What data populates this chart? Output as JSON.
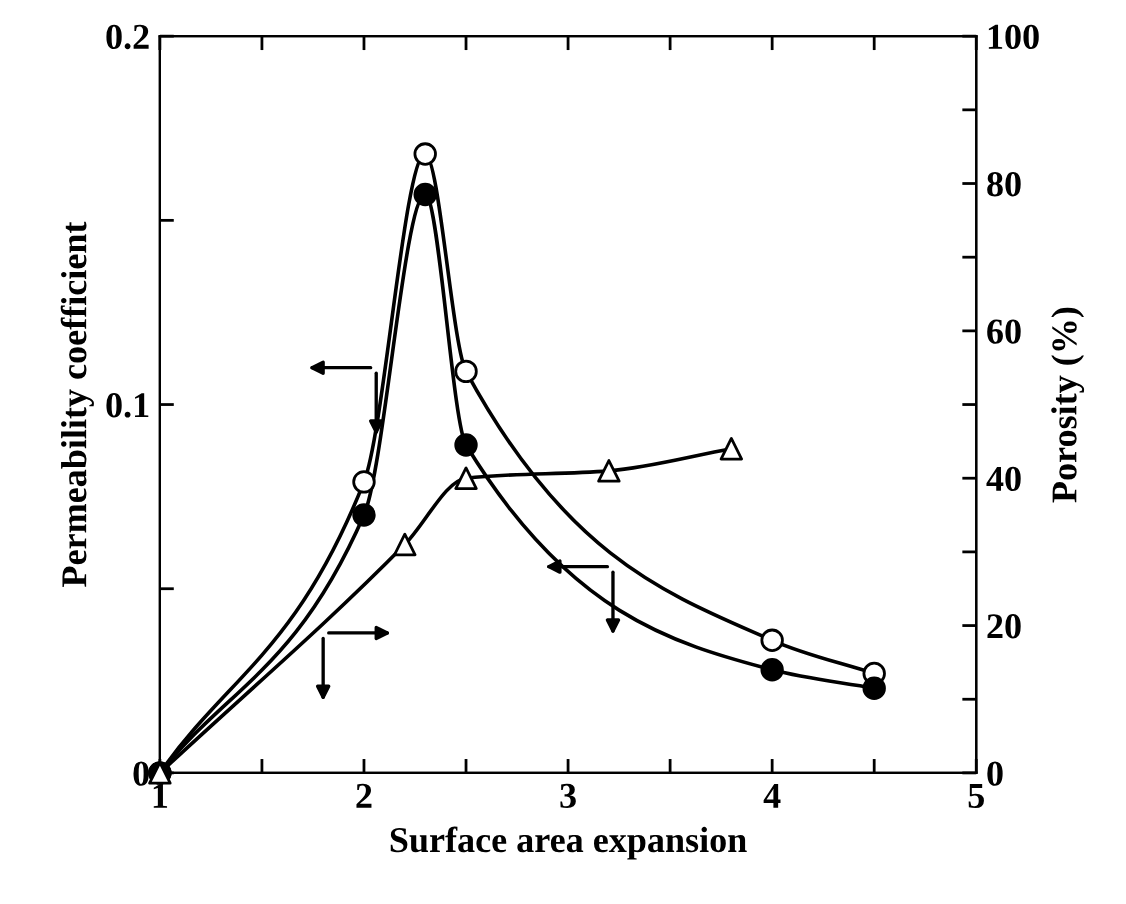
{
  "chart_data": {
    "type": "line",
    "xlabel": "Surface area expansion",
    "ylabel": "Permeability coefficient",
    "y2label": "Porosity (%)",
    "xlim": [
      1,
      5
    ],
    "xticks": [
      1,
      {
        "value": 1.5,
        "label": null
      },
      2,
      {
        "value": 2.5,
        "label": null
      },
      3,
      {
        "value": 3.5,
        "label": null
      },
      4,
      {
        "value": 4.5,
        "label": null
      },
      5
    ],
    "ylim": [
      0,
      0.2
    ],
    "yticks": [
      0,
      {
        "value": 0.05,
        "label": null
      },
      0.1,
      {
        "value": 0.15,
        "label": null
      },
      0.2
    ],
    "y2lim": [
      0,
      100
    ],
    "y2ticks": [
      0,
      {
        "value": 10,
        "label": null
      },
      20,
      {
        "value": 30,
        "label": null
      },
      40,
      {
        "value": 50,
        "label": null
      },
      60,
      {
        "value": 70,
        "label": null
      },
      80,
      {
        "value": 90,
        "label": null
      },
      100
    ],
    "grid": false,
    "legend": false,
    "line_style": "solid",
    "series": [
      {
        "color": "#000000",
        "marker": "circle",
        "colors": [
          "#ffffff",
          "#ffffff",
          "#ffffff",
          "#ffffff",
          "#ffffff",
          "#ffffff"
        ],
        "x": [
          1,
          2,
          2.3,
          2.5,
          4,
          4.5
        ],
        "values": [
          0,
          0.079,
          0.168,
          0.109,
          0.036,
          0.027
        ]
      },
      {
        "color": "#000000",
        "marker": "circle",
        "colors": [
          "#000000",
          "#000000",
          "#000000",
          "#000000",
          "#000000",
          "#000000"
        ],
        "x": [
          1,
          2,
          2.3,
          2.5,
          4,
          4.5
        ],
        "values": [
          0,
          0.07,
          0.157,
          0.089,
          0.028,
          0.023
        ]
      },
      {
        "color": "#000000",
        "marker": "triangle",
        "colors": [
          "#ffffff",
          "#ffffff",
          "#ffffff",
          "#ffffff",
          "#ffffff"
        ],
        "axis": "y2",
        "x": [
          1,
          2.2,
          2.5,
          3.2,
          3.8
        ],
        "values": [
          0,
          31,
          40,
          41,
          44
        ]
      }
    ]
  }
}
